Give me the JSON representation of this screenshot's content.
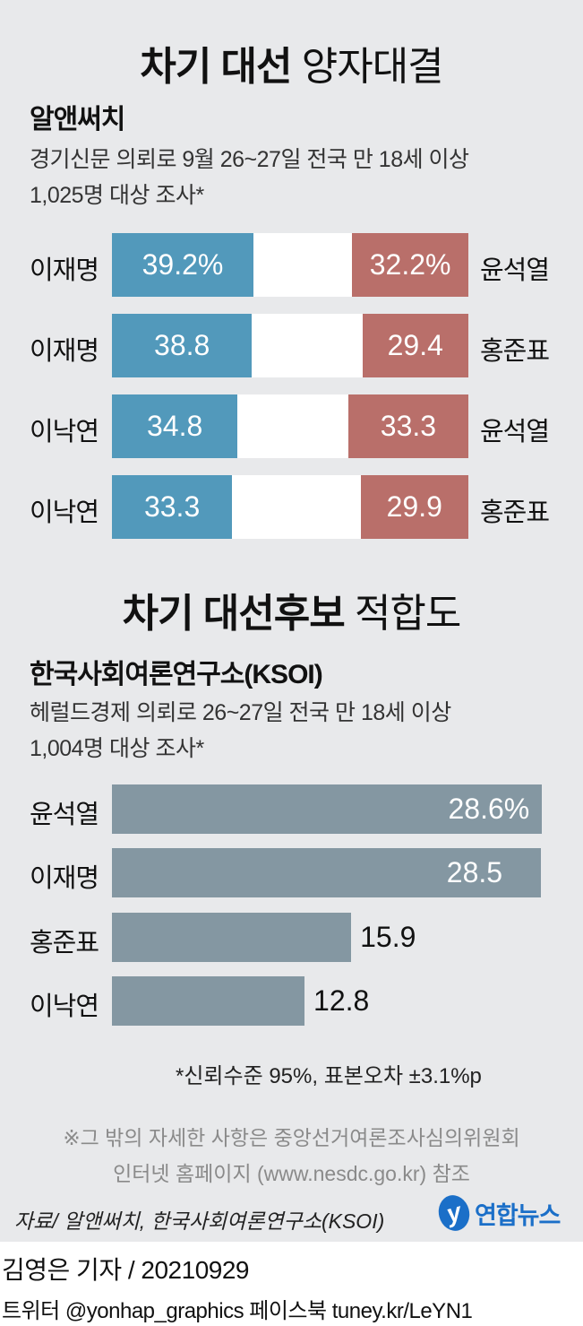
{
  "colors": {
    "blue": "#5299bb",
    "red": "#b96f6a",
    "gray_bar": "#8497a2",
    "panel": "#e8e9eb"
  },
  "chart_data": [
    {
      "type": "bar",
      "title_bold": "차기 대선",
      "title_rest": "양자대결",
      "subtitle": "알앤써치",
      "description": [
        "경기신문 의뢰로 9월 26~27일 전국 만 18세 이상",
        "1,025명 대상 조사*"
      ],
      "rows": [
        {
          "left": "이재명",
          "left_value": 39.2,
          "left_label": "39.2%",
          "right": "윤석열",
          "right_value": 32.2,
          "right_label": "32.2%"
        },
        {
          "left": "이재명",
          "left_value": 38.8,
          "left_label": "38.8",
          "right": "홍준표",
          "right_value": 29.4,
          "right_label": "29.4"
        },
        {
          "left": "이낙연",
          "left_value": 34.8,
          "left_label": "34.8",
          "right": "윤석열",
          "right_value": 33.3,
          "right_label": "33.3"
        },
        {
          "left": "이낙연",
          "left_value": 33.3,
          "left_label": "33.3",
          "right": "홍준표",
          "right_value": 29.9,
          "right_label": "29.9"
        }
      ]
    },
    {
      "type": "bar",
      "title_bold": "차기 대선후보",
      "title_rest": "적합도",
      "subtitle": "한국사회여론연구소(KSOI)",
      "description": [
        "헤럴드경제 의뢰로 26~27일 전국 만 18세 이상",
        "1,004명 대상 조사*"
      ],
      "categories": [
        "윤석열",
        "이재명",
        "홍준표",
        "이낙연"
      ],
      "values": [
        28.6,
        28.5,
        15.9,
        12.8
      ],
      "labels": [
        "28.6%",
        "28.5",
        "15.9",
        "12.8"
      ]
    }
  ],
  "footnote": "*신뢰수준 95%, 표본오차 ±3.1%p",
  "notice": [
    "※그 밖의 자세한 사항은 중앙선거여론조사심의위원회",
    "인터넷 홈페이지 (www.nesdc.go.kr) 참조"
  ],
  "source": "자료/ 알앤써치, 한국사회여론연구소(KSOI)",
  "logo": "연합뉴스",
  "byline": "김영은 기자 / 20210929",
  "social": "트위터 @yonhap_graphics  페이스북 tuney.kr/LeYN1"
}
